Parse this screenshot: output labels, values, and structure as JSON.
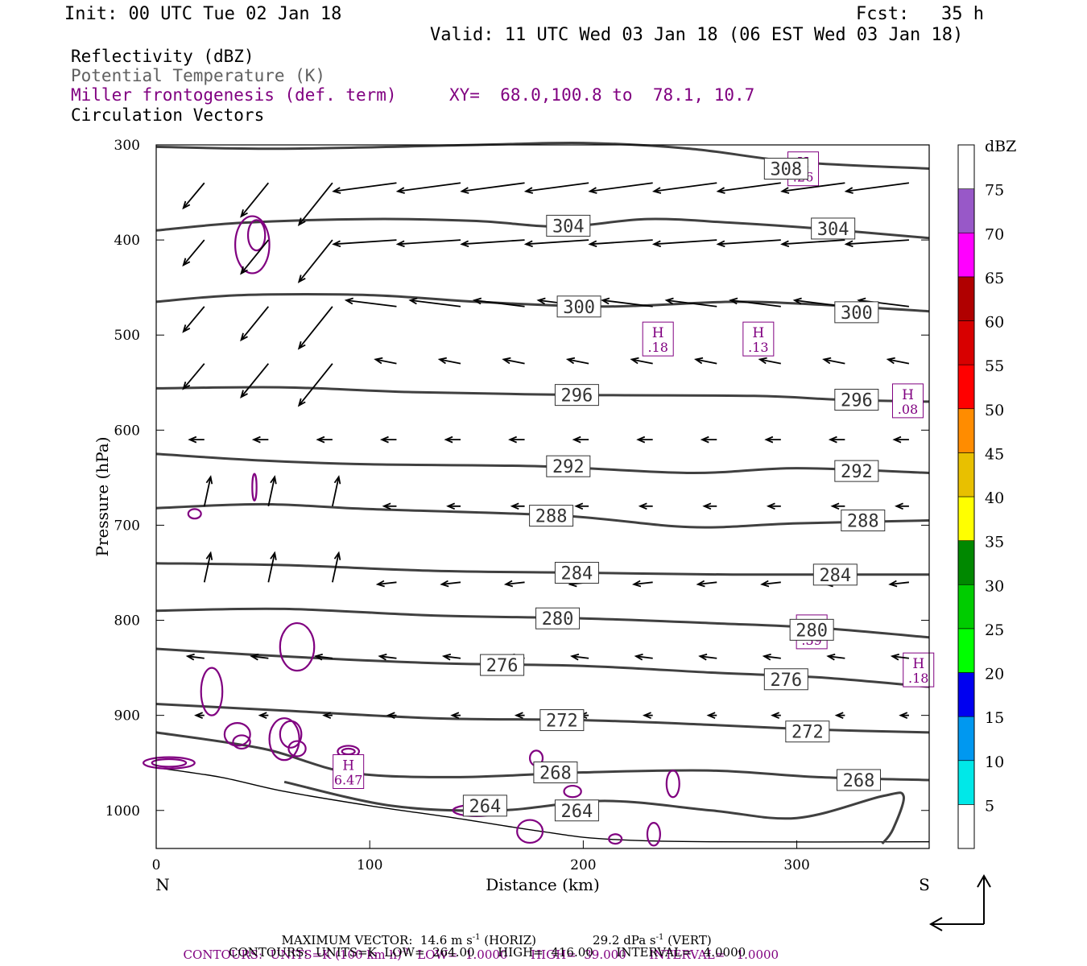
{
  "header": {
    "init": "Init: 00 UTC Tue 02 Jan 18",
    "fcst": "Fcst:   35 h",
    "valid": "Valid: 11 UTC Wed 03 Jan 18 (06 EST Wed 03 Jan 18)"
  },
  "legend": {
    "reflectivity": "Reflectivity (dBZ)",
    "theta": "Potential Temperature (K)",
    "frontogenesis": "Miller frontogenesis (def. term)",
    "xy": "XY=  68.0,100.8 to  78.1, 10.7",
    "circulation": "Circulation Vectors"
  },
  "colors": {
    "theta": "#404040",
    "frontogenesis": "#800080",
    "vectors": "#000000"
  },
  "chart_data": {
    "type": "cross-section",
    "ylabel": "Pressure (hPa)",
    "xlabel": "Distance (km)",
    "x_end_labels": {
      "left": "N",
      "right": "S"
    },
    "xlim": [
      0,
      362
    ],
    "ylim": [
      1040,
      300
    ],
    "x_ticks": [
      0,
      100,
      200,
      300
    ],
    "y_ticks": [
      300,
      400,
      500,
      600,
      700,
      800,
      900,
      1000
    ],
    "colorbar": {
      "unit_label": "dBZ",
      "levels": [
        5,
        10,
        15,
        20,
        25,
        30,
        35,
        40,
        45,
        50,
        55,
        60,
        65,
        70,
        75
      ],
      "colors": [
        "#ffffff",
        "#00e8e8",
        "#0098f0",
        "#0000f0",
        "#00ff00",
        "#00cc00",
        "#008800",
        "#ffff00",
        "#e8c000",
        "#ff8c00",
        "#ff0000",
        "#d80000",
        "#b00000",
        "#ff00ff",
        "#9858c8",
        "#ffffff"
      ]
    },
    "theta_contours": [
      {
        "label": "308",
        "points": [
          [
            0,
            302
          ],
          [
            60,
            304
          ],
          [
            150,
            300
          ],
          [
            200,
            298
          ],
          [
            250,
            304
          ],
          [
            300,
            318
          ],
          [
            362,
            325
          ]
        ],
        "label_at": [
          295,
          325
        ]
      },
      {
        "label": "304",
        "points": [
          [
            0,
            390
          ],
          [
            40,
            382
          ],
          [
            100,
            378
          ],
          [
            150,
            380
          ],
          [
            190,
            386
          ],
          [
            230,
            378
          ],
          [
            270,
            382
          ],
          [
            310,
            388
          ],
          [
            362,
            398
          ]
        ],
        "label_at": [
          [
            193,
            385
          ],
          [
            317,
            388
          ]
        ]
      },
      {
        "label": "300",
        "points": [
          [
            0,
            465
          ],
          [
            40,
            458
          ],
          [
            100,
            458
          ],
          [
            150,
            465
          ],
          [
            210,
            470
          ],
          [
            270,
            465
          ],
          [
            310,
            468
          ],
          [
            362,
            475
          ]
        ],
        "label_at": [
          [
            198,
            470
          ],
          [
            328,
            476
          ]
        ]
      },
      {
        "label": "296",
        "points": [
          [
            0,
            556
          ],
          [
            60,
            555
          ],
          [
            120,
            560
          ],
          [
            200,
            563
          ],
          [
            280,
            564
          ],
          [
            320,
            568
          ],
          [
            362,
            570
          ]
        ],
        "label_at": [
          [
            197,
            563
          ],
          [
            328,
            568
          ]
        ]
      },
      {
        "label": "292",
        "points": [
          [
            0,
            625
          ],
          [
            50,
            632
          ],
          [
            100,
            636
          ],
          [
            180,
            638
          ],
          [
            250,
            645
          ],
          [
            300,
            640
          ],
          [
            362,
            645
          ]
        ],
        "label_at": [
          [
            193,
            638
          ],
          [
            328,
            643
          ]
        ]
      },
      {
        "label": "288",
        "points": [
          [
            0,
            682
          ],
          [
            50,
            678
          ],
          [
            100,
            683
          ],
          [
            190,
            690
          ],
          [
            250,
            702
          ],
          [
            300,
            698
          ],
          [
            362,
            695
          ]
        ],
        "label_at": [
          [
            185,
            690
          ],
          [
            331,
            695
          ]
        ]
      },
      {
        "label": "284",
        "points": [
          [
            0,
            740
          ],
          [
            60,
            742
          ],
          [
            130,
            748
          ],
          [
            200,
            750
          ],
          [
            270,
            752
          ],
          [
            320,
            752
          ],
          [
            362,
            752
          ]
        ],
        "label_at": [
          [
            197,
            750
          ],
          [
            318,
            752
          ]
        ]
      },
      {
        "label": "280",
        "points": [
          [
            0,
            790
          ],
          [
            60,
            788
          ],
          [
            130,
            795
          ],
          [
            200,
            798
          ],
          [
            260,
            803
          ],
          [
            310,
            808
          ],
          [
            362,
            818
          ]
        ],
        "label_at": [
          [
            188,
            798
          ],
          [
            307,
            810
          ]
        ]
      },
      {
        "label": "276",
        "points": [
          [
            0,
            830
          ],
          [
            60,
            838
          ],
          [
            130,
            845
          ],
          [
            200,
            848
          ],
          [
            260,
            855
          ],
          [
            310,
            860
          ],
          [
            362,
            870
          ]
        ],
        "label_at": [
          [
            162,
            847
          ],
          [
            295,
            862
          ]
        ]
      },
      {
        "label": "272",
        "points": [
          [
            0,
            888
          ],
          [
            60,
            895
          ],
          [
            130,
            903
          ],
          [
            200,
            905
          ],
          [
            260,
            910
          ],
          [
            310,
            915
          ],
          [
            362,
            918
          ]
        ],
        "label_at": [
          [
            190,
            905
          ],
          [
            305,
            917
          ]
        ]
      },
      {
        "label": "268",
        "points": [
          [
            0,
            918
          ],
          [
            50,
            935
          ],
          [
            90,
            960
          ],
          [
            140,
            965
          ],
          [
            200,
            960
          ],
          [
            260,
            958
          ],
          [
            310,
            965
          ],
          [
            362,
            968
          ]
        ],
        "label_at": [
          [
            187,
            960
          ],
          [
            329,
            968
          ]
        ]
      },
      {
        "label": "264",
        "points": [
          [
            60,
            970
          ],
          [
            110,
            995
          ],
          [
            160,
            1000
          ],
          [
            210,
            990
          ],
          [
            260,
            1000
          ],
          [
            300,
            1008
          ],
          [
            340,
            985
          ],
          [
            350,
            985
          ],
          [
            345,
            1020
          ],
          [
            340,
            1035
          ]
        ],
        "label_at": [
          [
            154,
            995
          ],
          [
            197,
            1000
          ]
        ]
      }
    ],
    "frontogenesis_maxima": [
      {
        "label": "H",
        "value": ".26",
        "x": 303,
        "p": 326
      },
      {
        "label": "H",
        "value": ".18",
        "x": 235,
        "p": 505
      },
      {
        "label": "H",
        "value": ".13",
        "x": 282,
        "p": 505
      },
      {
        "label": "H",
        "value": ".08",
        "x": 352,
        "p": 570
      },
      {
        "label": "H",
        "value": ".39",
        "x": 307,
        "p": 813
      },
      {
        "label": "H",
        "value": ".18",
        "x": 357,
        "p": 853
      },
      {
        "label": "H",
        "value": "6.47",
        "x": 90,
        "p": 960
      }
    ],
    "max_vector": {
      "text": "MAXIMUM VECTOR:  14.6 m s",
      "horiz_unit_sup": "-1",
      "horiz_suffix": " (HORIZ)",
      "vert_text": "29.2 dPa s",
      "vert_unit_sup": "-1",
      "vert_suffix": " (VERT)"
    },
    "contours_fronto": {
      "prefix": "CONTOURS:  UNITS=K (100 km h)",
      "sup": "-1",
      "rest": "  LOW=  1.0000      HIGH=  39.000      INTERVAL=   1.0000"
    },
    "contours_theta": "CONTOURS:  UNITS=K  LOW=  264.00      HIGH=  416.00      INTERVAL=   4.0000"
  }
}
